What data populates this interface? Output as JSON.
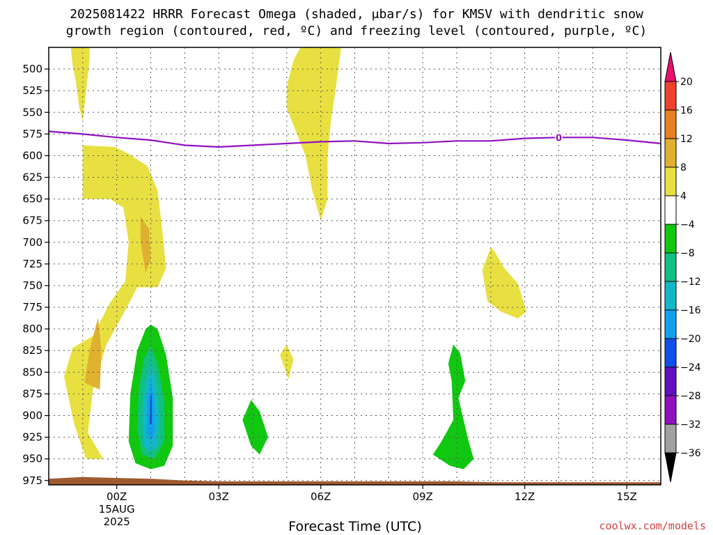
{
  "title_line1": "2025081422 HRRR Forecast Omega (shaded, μbar/s) for KMSV with dendritic snow",
  "title_line2": "growth region (contoured, red, ºC) and freezing level (contoured, purple, ºC)",
  "credit": "coolwx.com/models",
  "chart_data": {
    "type": "heatmap",
    "title": "2025081422 HRRR Forecast Omega (shaded, μbar/s) for KMSV with dendritic snow growth region (contoured, red, ºC) and freezing level (contoured, purple, ºC)",
    "xlabel": "Forecast Time (UTC)",
    "ylabel": "",
    "x_unit": "hours from 00Z 15AUG2025",
    "xlim": [
      -2,
      16
    ],
    "ylim": [
      980,
      475
    ],
    "y_ticks": [
      500,
      525,
      550,
      575,
      600,
      625,
      650,
      675,
      700,
      725,
      750,
      775,
      800,
      825,
      850,
      875,
      900,
      925,
      950,
      975
    ],
    "x_ticks": [
      {
        "x": 0,
        "label": "00Z",
        "sub1": "15AUG",
        "sub2": "2025"
      },
      {
        "x": 3,
        "label": "03Z"
      },
      {
        "x": 6,
        "label": "06Z"
      },
      {
        "x": 9,
        "label": "09Z"
      },
      {
        "x": 12,
        "label": "12Z"
      },
      {
        "x": 15,
        "label": "15Z"
      }
    ],
    "grid": true,
    "colorbar": {
      "levels": [
        -36,
        -32,
        -28,
        -24,
        -20,
        -16,
        -12,
        -8,
        -4,
        4,
        8,
        12,
        16,
        20
      ],
      "labels": [
        "20",
        "16",
        "12",
        "8",
        "4",
        "−4",
        "−8",
        "−12",
        "−16",
        "−20",
        "−24",
        "−28",
        "−32",
        "−36"
      ],
      "colors_top_to_bottom": [
        "#e8106a",
        "#f04030",
        "#e88020",
        "#e0b030",
        "#e8e040",
        "#ffffff",
        "#10c810",
        "#10c080",
        "#10b8c8",
        "#10a0f0",
        "#1050e8",
        "#6010c0",
        "#9010c0",
        "#a0a0a0",
        "#000000"
      ]
    },
    "freezing_level": {
      "label": "0",
      "color": "#9010c0",
      "points": [
        [
          -2,
          572
        ],
        [
          -1,
          575
        ],
        [
          0,
          579
        ],
        [
          1,
          582
        ],
        [
          2,
          588
        ],
        [
          3,
          590
        ],
        [
          4,
          588
        ],
        [
          5,
          586
        ],
        [
          6,
          584
        ],
        [
          7,
          583
        ],
        [
          8,
          586
        ],
        [
          9,
          585
        ],
        [
          10,
          583
        ],
        [
          11,
          583
        ],
        [
          12,
          580
        ],
        [
          13,
          579
        ],
        [
          14,
          579
        ],
        [
          15,
          582
        ],
        [
          16,
          586
        ]
      ],
      "label_at": [
        13,
        579
      ]
    },
    "omega_regions": [
      {
        "value": 6,
        "color": "#e8e040",
        "points": [
          [
            -1.35,
            475
          ],
          [
            -0.8,
            475
          ],
          [
            -0.8,
            490
          ],
          [
            -0.9,
            525
          ],
          [
            -1.0,
            560
          ],
          [
            -1.1,
            545
          ],
          [
            -1.2,
            515
          ],
          [
            -1.3,
            495
          ]
        ]
      },
      {
        "value": 6,
        "color": "#e8e040",
        "points": [
          [
            -1.0,
            588
          ],
          [
            -0.05,
            590
          ],
          [
            0.35,
            598
          ],
          [
            0.9,
            612
          ],
          [
            1.2,
            640
          ],
          [
            1.35,
            690
          ],
          [
            1.45,
            730
          ],
          [
            1.2,
            752
          ],
          [
            0.6,
            752
          ],
          [
            0.3,
            775
          ],
          [
            -0.3,
            818
          ],
          [
            -0.7,
            870
          ],
          [
            -0.85,
            920
          ],
          [
            -0.4,
            950
          ],
          [
            -0.9,
            950
          ],
          [
            -1.25,
            910
          ],
          [
            -1.55,
            855
          ],
          [
            -1.3,
            822
          ],
          [
            -0.7,
            808
          ],
          [
            -0.2,
            770
          ],
          [
            0.25,
            745
          ],
          [
            0.35,
            700
          ],
          [
            0.2,
            660
          ],
          [
            -0.2,
            650
          ],
          [
            -1.0,
            650
          ]
        ]
      },
      {
        "value": 10,
        "color": "#e0b030",
        "points": [
          [
            0.7,
            670
          ],
          [
            0.95,
            685
          ],
          [
            1.0,
            720
          ],
          [
            0.85,
            735
          ],
          [
            0.7,
            700
          ]
        ]
      },
      {
        "value": 10,
        "color": "#e0b030",
        "points": [
          [
            -0.55,
            787
          ],
          [
            -0.45,
            825
          ],
          [
            -0.5,
            870
          ],
          [
            -0.95,
            862
          ],
          [
            -0.8,
            825
          ]
        ]
      },
      {
        "value": 6,
        "color": "#e8e040",
        "points": [
          [
            5.4,
            475
          ],
          [
            6.6,
            475
          ],
          [
            6.45,
            520
          ],
          [
            6.3,
            560
          ],
          [
            6.2,
            600
          ],
          [
            6.2,
            650
          ],
          [
            6.0,
            675
          ],
          [
            5.75,
            640
          ],
          [
            5.55,
            600
          ],
          [
            5.25,
            570
          ],
          [
            5.0,
            545
          ],
          [
            5.0,
            520
          ],
          [
            5.2,
            490
          ]
        ]
      },
      {
        "value": 6,
        "color": "#e8e040",
        "points": [
          [
            5.0,
            818
          ],
          [
            5.2,
            835
          ],
          [
            5.05,
            858
          ],
          [
            4.8,
            830
          ]
        ]
      },
      {
        "value": 6,
        "color": "#e8e040",
        "points": [
          [
            11.0,
            706
          ],
          [
            11.1,
            710
          ],
          [
            11.4,
            730
          ],
          [
            11.8,
            748
          ],
          [
            12.05,
            780
          ],
          [
            11.8,
            788
          ],
          [
            11.3,
            780
          ],
          [
            10.9,
            768
          ],
          [
            10.75,
            732
          ]
        ]
      },
      {
        "value": -6,
        "color": "#10c810",
        "points": [
          [
            1.0,
            795
          ],
          [
            1.2,
            800
          ],
          [
            1.45,
            830
          ],
          [
            1.65,
            880
          ],
          [
            1.65,
            935
          ],
          [
            1.4,
            958
          ],
          [
            1.0,
            962
          ],
          [
            0.55,
            955
          ],
          [
            0.35,
            930
          ],
          [
            0.4,
            875
          ],
          [
            0.6,
            825
          ],
          [
            0.85,
            800
          ]
        ]
      },
      {
        "value": -10,
        "color": "#10c080",
        "points": [
          [
            1.0,
            820
          ],
          [
            1.2,
            840
          ],
          [
            1.4,
            885
          ],
          [
            1.4,
            930
          ],
          [
            1.1,
            950
          ],
          [
            0.75,
            945
          ],
          [
            0.6,
            915
          ],
          [
            0.65,
            870
          ],
          [
            0.8,
            835
          ]
        ]
      },
      {
        "value": -14,
        "color": "#10b8c8",
        "points": [
          [
            1.0,
            840
          ],
          [
            1.15,
            860
          ],
          [
            1.25,
            900
          ],
          [
            1.2,
            935
          ],
          [
            1.0,
            942
          ],
          [
            0.8,
            935
          ],
          [
            0.75,
            900
          ],
          [
            0.85,
            860
          ]
        ]
      },
      {
        "value": -18,
        "color": "#10a0f0",
        "points": [
          [
            1.0,
            860
          ],
          [
            1.1,
            880
          ],
          [
            1.12,
            920
          ],
          [
            1.0,
            930
          ],
          [
            0.88,
            920
          ],
          [
            0.9,
            880
          ]
        ]
      },
      {
        "value": -22,
        "color": "#1050e8",
        "points": [
          [
            0.99,
            875
          ],
          [
            1.03,
            878
          ],
          [
            1.03,
            910
          ],
          [
            0.97,
            910
          ]
        ]
      },
      {
        "value": -6,
        "color": "#10c810",
        "points": [
          [
            3.95,
            882
          ],
          [
            4.2,
            895
          ],
          [
            4.45,
            925
          ],
          [
            4.2,
            945
          ],
          [
            3.95,
            935
          ],
          [
            3.7,
            905
          ]
        ]
      },
      {
        "value": -6,
        "color": "#10c810",
        "points": [
          [
            9.9,
            818
          ],
          [
            10.1,
            828
          ],
          [
            10.25,
            860
          ],
          [
            10.05,
            880
          ],
          [
            10.35,
            930
          ],
          [
            10.5,
            950
          ],
          [
            10.2,
            962
          ],
          [
            9.8,
            958
          ],
          [
            9.3,
            945
          ],
          [
            9.55,
            930
          ],
          [
            9.9,
            905
          ],
          [
            9.85,
            860
          ],
          [
            9.75,
            840
          ]
        ]
      }
    ],
    "terrain": {
      "color": "#a05a30",
      "points": [
        [
          -2,
          980
        ],
        [
          -2,
          973
        ],
        [
          -1,
          971
        ],
        [
          0,
          972
        ],
        [
          1,
          973
        ],
        [
          2,
          975
        ],
        [
          3,
          976
        ],
        [
          4,
          976
        ],
        [
          5,
          976
        ],
        [
          6,
          976
        ],
        [
          8,
          976
        ],
        [
          10,
          976
        ],
        [
          11,
          977
        ],
        [
          12,
          977
        ],
        [
          13,
          977
        ],
        [
          14,
          977
        ],
        [
          15,
          977
        ],
        [
          16,
          977
        ],
        [
          16,
          980
        ]
      ]
    }
  }
}
